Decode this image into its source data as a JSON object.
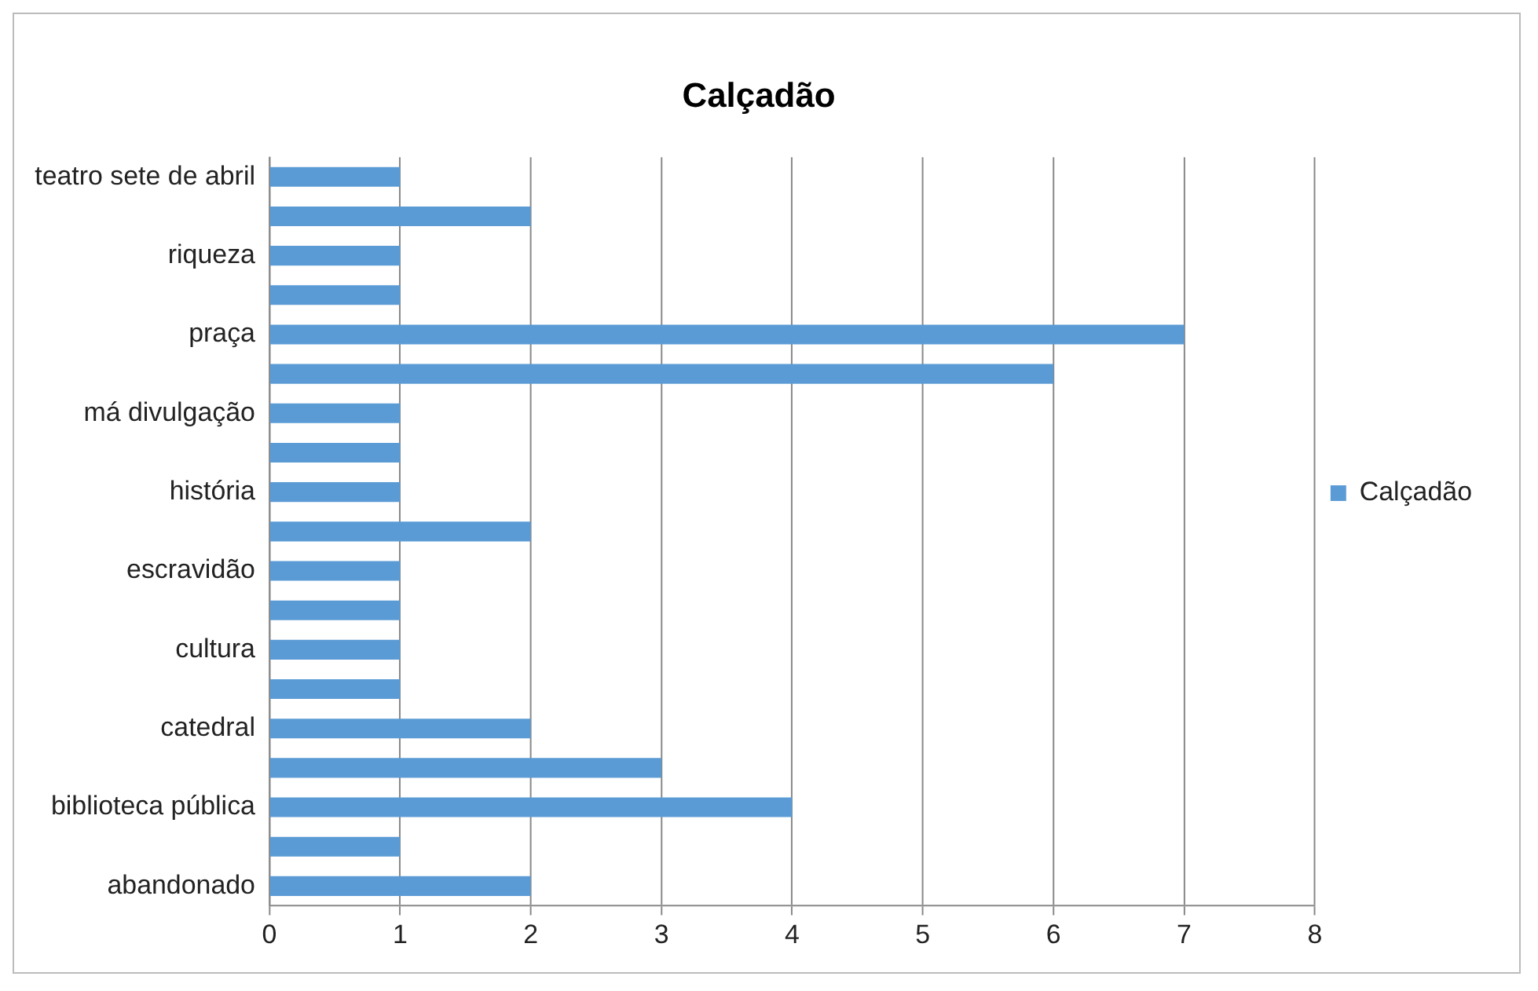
{
  "chart_data": {
    "type": "bar",
    "title": "Calçadão",
    "orientation": "horizontal",
    "categories": [
      "teatro sete de abril",
      null,
      "riqueza",
      null,
      "praça",
      null,
      "má divulgação",
      null,
      "história",
      null,
      "escravidão",
      null,
      "cultura",
      null,
      "catedral",
      null,
      "biblioteca pública",
      null,
      "abandonado"
    ],
    "series": [
      {
        "name": "Calçadão",
        "color": "#5b9bd5",
        "values": [
          1,
          2,
          1,
          1,
          7,
          6,
          1,
          1,
          1,
          2,
          1,
          1,
          1,
          1,
          2,
          3,
          4,
          1,
          2
        ]
      }
    ],
    "xlim": [
      0,
      8
    ],
    "xticks": [
      0,
      1,
      2,
      3,
      4,
      5,
      6,
      7,
      8
    ],
    "grid": "x",
    "legend": "right"
  }
}
